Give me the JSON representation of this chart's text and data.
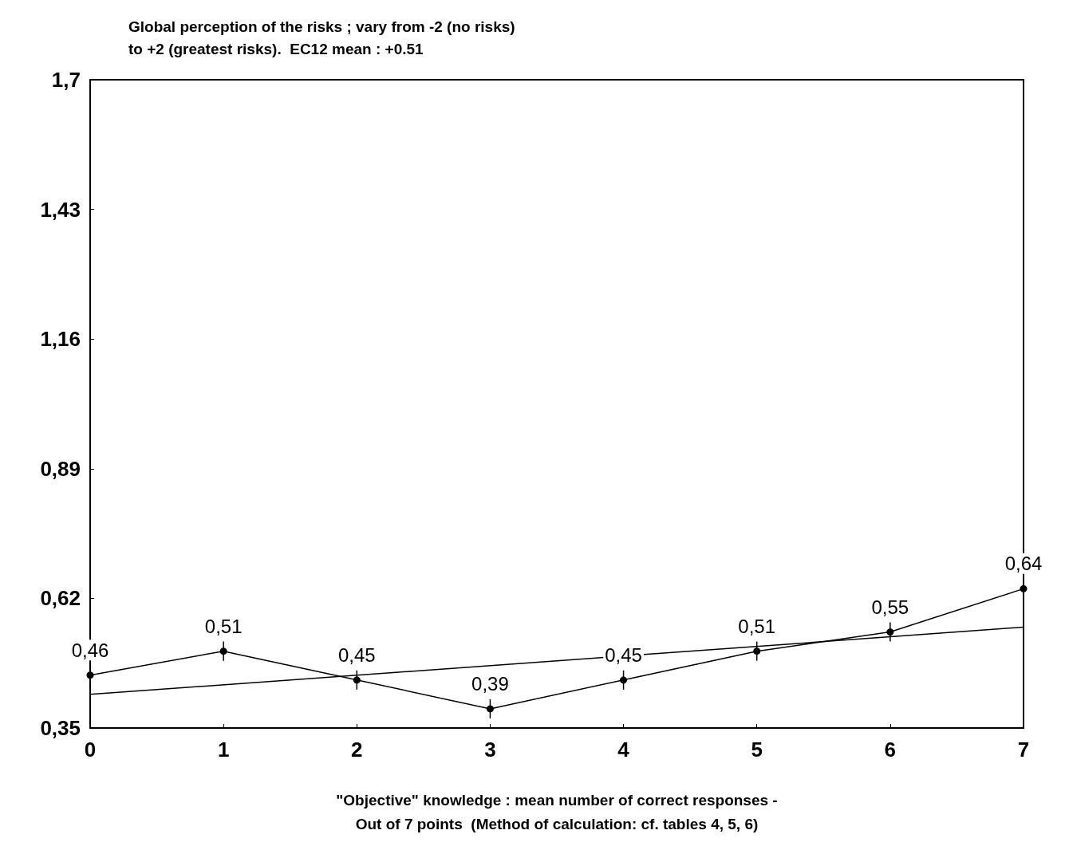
{
  "chart_data": {
    "type": "line",
    "title": "Global perception of the risks ; vary from -2 (no risks)\nto +2 (greatest risks).  EC12 mean : +0.51",
    "xlabel": "\"Objective\" knowledge : mean number of correct responses -\nOut of 7 points  (Method of calculation: cf. tables 4, 5, 6)",
    "x": [
      0,
      1,
      2,
      3,
      4,
      5,
      6,
      7
    ],
    "series": [
      {
        "color": "#000000",
        "values": [
          0.46,
          0.51,
          0.45,
          0.39,
          0.45,
          0.51,
          0.55,
          0.64
        ],
        "value_labels": [
          "0,46",
          "0,51",
          "0,45",
          "0,39",
          "0,45",
          "0,51",
          "0,55",
          "0,64"
        ],
        "errors": [
          0.02,
          0.02,
          0.02,
          0.02,
          0.02,
          0.02,
          0.02,
          0.02
        ],
        "marker": "circle"
      },
      {
        "type": "line",
        "color": "#000000",
        "x": [
          0,
          7
        ],
        "values": [
          0.42,
          0.56
        ],
        "marker": "none"
      }
    ],
    "xlim": [
      0,
      7
    ],
    "xticks": [
      0,
      1,
      2,
      3,
      4,
      5,
      6,
      7
    ],
    "ylim": [
      0.35,
      1.7
    ],
    "yticks": [
      {
        "value": 0.35,
        "label": "0,35"
      },
      {
        "value": 0.62,
        "label": "0,62"
      },
      {
        "value": 0.89,
        "label": "0,89"
      },
      {
        "value": 1.16,
        "label": "1,16"
      },
      {
        "value": 1.43,
        "label": "1,43"
      },
      {
        "value": 1.7,
        "label": "1,7"
      }
    ],
    "grid": false
  }
}
